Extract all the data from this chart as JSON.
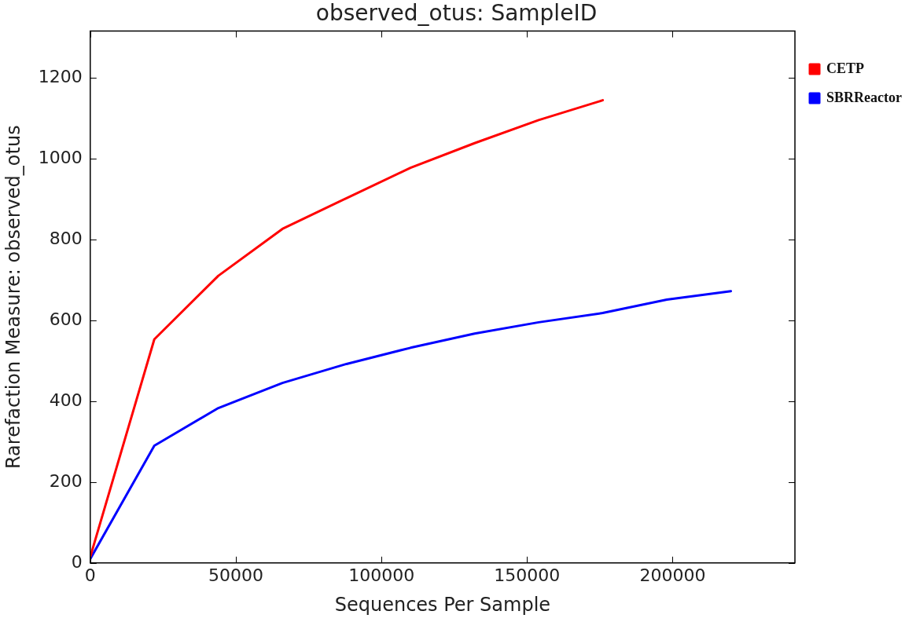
{
  "chart_data": {
    "type": "line",
    "title": "observed_otus: SampleID",
    "xlabel": "Sequences Per Sample",
    "ylabel": "Rarefaction Measure: observed_otus",
    "series": [
      {
        "name": "CETP",
        "color": "#ff0000",
        "x": [
          0,
          22000,
          44000,
          66000,
          88000,
          110000,
          132000,
          154000,
          176000
        ],
        "values": [
          15,
          553,
          710,
          826,
          902,
          977,
          1038,
          1095,
          1144
        ]
      },
      {
        "name": "SBRReactor",
        "color": "#0000ff",
        "x": [
          0,
          22000,
          44000,
          66000,
          88000,
          110000,
          132000,
          154000,
          176000,
          198000,
          220000
        ],
        "values": [
          10,
          290,
          383,
          445,
          492,
          532,
          567,
          595,
          618,
          651,
          672
        ]
      }
    ],
    "xlim": [
      0,
      242000
    ],
    "xticks": [
      0,
      50000,
      100000,
      150000,
      200000
    ],
    "ylim": [
      0,
      1315
    ],
    "yticks": [
      0,
      200,
      400,
      600,
      800,
      1000,
      1200
    ],
    "legend": "top right",
    "marker": "none",
    "line_style": "solid"
  }
}
